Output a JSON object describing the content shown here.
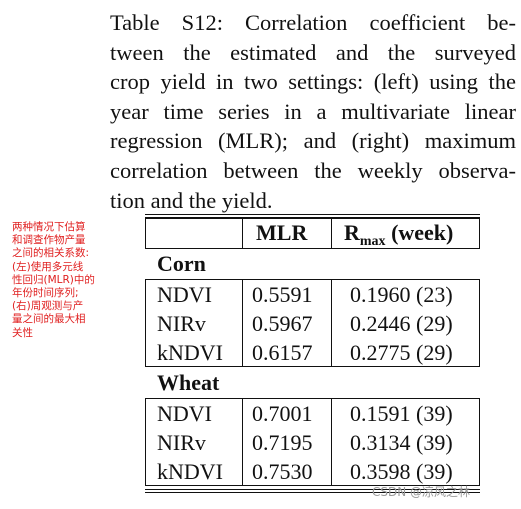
{
  "caption": {
    "lines": [
      "Table S12: Correlation coefficient be-",
      "tween the estimated and the surveyed",
      "crop yield in two settings: (left) using the",
      "year time series in a multivariate linear",
      "regression (MLR); and (right) maximum",
      "correlation between the weekly observa-",
      "tion and the yield."
    ]
  },
  "note": {
    "lines": [
      "两种情况下估算",
      "和调查作物产量",
      "之间的相关系数:",
      "(左)使用多元线",
      "性回归(MLR)中的",
      "年份时间序列;",
      "(右)周观测与产",
      "量之间的最大相",
      "关性"
    ]
  },
  "table": {
    "header": {
      "col1": "MLR",
      "col2_main": "R",
      "col2_sub": "max",
      "col2_tail": " (week)"
    },
    "groups": [
      {
        "name": "Corn",
        "rows": [
          {
            "index": "NDVI",
            "mlr": "0.5591",
            "rmax": "0.1960 (23)"
          },
          {
            "index": "NIRv",
            "mlr": "0.5967",
            "rmax": "0.2446 (29)"
          },
          {
            "index": "kNDVI",
            "mlr": "0.6157",
            "rmax": "0.2775 (29)"
          }
        ]
      },
      {
        "name": "Wheat",
        "rows": [
          {
            "index": "NDVI",
            "mlr": "0.7001",
            "rmax": "0.1591 (39)"
          },
          {
            "index": "NIRv",
            "mlr": "0.7195",
            "rmax": "0.3134 (39)"
          },
          {
            "index": "kNDVI",
            "mlr": "0.7530",
            "rmax": "0.3598 (39)"
          }
        ]
      }
    ]
  },
  "watermark": "CSDN @凉风之林"
}
